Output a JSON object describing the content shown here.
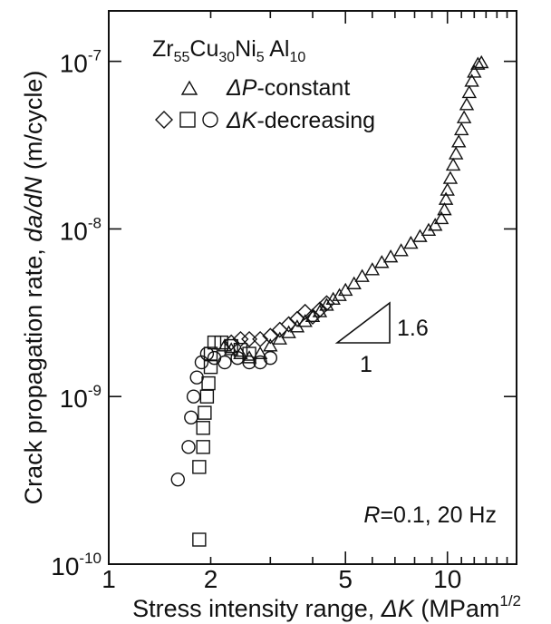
{
  "chart_data": {
    "type": "scatter",
    "x_axis": {
      "label_prefix": "Stress intensity range, ",
      "label_symbol": "ΔK",
      "label_unit": " (MPam",
      "label_unit_exp": "1/2",
      "scale": "log",
      "range": [
        1,
        16
      ],
      "major_ticks": [
        1,
        5,
        10
      ],
      "tick_labels": [
        "1",
        "2",
        "5",
        "10"
      ],
      "tick_label_values": [
        1,
        2,
        5,
        10
      ]
    },
    "y_axis": {
      "label_prefix": "Crack propagation rate, ",
      "label_symbol": "da/dN",
      "label_unit": " (m/cycle)",
      "scale": "log",
      "range": [
        1e-10,
        2e-07
      ],
      "tick_base": "10",
      "tick_exponents": [
        "-10",
        "-9",
        "-8",
        "-7"
      ],
      "tick_values": [
        1e-10,
        1e-09,
        1e-08,
        1e-07
      ]
    },
    "legend": {
      "title_parts": [
        {
          "t": "Zr",
          "sub": false
        },
        {
          "t": "55",
          "sub": true
        },
        {
          "t": "Cu",
          "sub": false
        },
        {
          "t": "30",
          "sub": true
        },
        {
          "t": "Ni",
          "sub": false
        },
        {
          "t": "5",
          "sub": true
        },
        {
          "t": " Al",
          "sub": false
        },
        {
          "t": "10",
          "sub": true
        }
      ],
      "entry1_symbol": "ΔP",
      "entry1_text": "-constant",
      "entry2_symbol": "ΔK",
      "entry2_text": "-decreasing",
      "placement": "top-left"
    },
    "annotations": {
      "condition_italic": "R",
      "condition_text": "=0.1, 20 Hz",
      "slope_value": "1.6",
      "slope_run": "1"
    },
    "series": [
      {
        "marker": "triangle",
        "points": [
          [
            2.2,
            2e-09
          ],
          [
            2.3,
            1.9e-09
          ],
          [
            2.45,
            1.8e-09
          ],
          [
            2.6,
            1.7e-09
          ],
          [
            2.8,
            1.8e-09
          ],
          [
            3.0,
            2e-09
          ],
          [
            3.2,
            2.2e-09
          ],
          [
            3.4,
            2.4e-09
          ],
          [
            3.6,
            2.6e-09
          ],
          [
            3.8,
            2.8e-09
          ],
          [
            4.0,
            3e-09
          ],
          [
            4.2,
            3.2e-09
          ],
          [
            4.4,
            3.5e-09
          ],
          [
            4.6,
            3.8e-09
          ],
          [
            4.8,
            4e-09
          ],
          [
            5.0,
            4.3e-09
          ],
          [
            5.3,
            4.7e-09
          ],
          [
            5.6,
            5.2e-09
          ],
          [
            6.0,
            5.7e-09
          ],
          [
            6.4,
            6.3e-09
          ],
          [
            6.8,
            6.8e-09
          ],
          [
            7.3,
            7.4e-09
          ],
          [
            7.8,
            8.2e-09
          ],
          [
            8.3,
            9e-09
          ],
          [
            8.8,
            9.8e-09
          ],
          [
            9.2,
            1.05e-08
          ],
          [
            9.6,
            1.15e-08
          ],
          [
            9.8,
            1.3e-08
          ],
          [
            9.9,
            1.5e-08
          ],
          [
            10.0,
            1.7e-08
          ],
          [
            10.2,
            2e-08
          ],
          [
            10.4,
            2.4e-08
          ],
          [
            10.6,
            2.8e-08
          ],
          [
            10.8,
            3.3e-08
          ],
          [
            11.0,
            3.9e-08
          ],
          [
            11.2,
            4.6e-08
          ],
          [
            11.4,
            5.5e-08
          ],
          [
            11.6,
            6.5e-08
          ],
          [
            11.8,
            7.6e-08
          ],
          [
            12.0,
            8.6e-08
          ],
          [
            12.3,
            9.6e-08
          ],
          [
            12.6,
            9.8e-08
          ]
        ]
      },
      {
        "marker": "diamond",
        "points": [
          [
            2.3,
            2.1e-09
          ],
          [
            2.45,
            2.2e-09
          ],
          [
            2.6,
            2.2e-09
          ],
          [
            2.8,
            2.2e-09
          ],
          [
            3.0,
            2.3e-09
          ],
          [
            3.2,
            2.5e-09
          ],
          [
            3.4,
            2.7e-09
          ],
          [
            3.6,
            2.9e-09
          ],
          [
            3.8,
            3.2e-09
          ],
          [
            4.0,
            3e-09
          ],
          [
            4.2,
            3.3e-09
          ],
          [
            4.4,
            3.6e-09
          ]
        ]
      },
      {
        "marker": "square",
        "points": [
          [
            1.85,
            1.4e-10
          ],
          [
            1.85,
            3.8e-10
          ],
          [
            1.9,
            5e-10
          ],
          [
            1.9,
            6.5e-10
          ],
          [
            1.92,
            8e-10
          ],
          [
            1.95,
            1e-09
          ],
          [
            1.97,
            1.2e-09
          ],
          [
            2.0,
            1.5e-09
          ],
          [
            2.0,
            1.8e-09
          ],
          [
            2.05,
            2.1e-09
          ],
          [
            2.15,
            2.1e-09
          ],
          [
            2.3,
            2e-09
          ],
          [
            2.45,
            1.9e-09
          ],
          [
            2.6,
            1.8e-09
          ]
        ]
      },
      {
        "marker": "circle",
        "points": [
          [
            1.6,
            3.2e-10
          ],
          [
            1.72,
            5e-10
          ],
          [
            1.75,
            7.5e-10
          ],
          [
            1.78,
            1e-09
          ],
          [
            1.82,
            1.3e-09
          ],
          [
            1.88,
            1.6e-09
          ],
          [
            1.95,
            1.8e-09
          ],
          [
            2.05,
            1.7e-09
          ],
          [
            2.2,
            1.6e-09
          ],
          [
            2.4,
            1.7e-09
          ],
          [
            2.6,
            1.6e-09
          ],
          [
            2.8,
            1.6e-09
          ],
          [
            3.0,
            1.7e-09
          ]
        ]
      }
    ]
  }
}
